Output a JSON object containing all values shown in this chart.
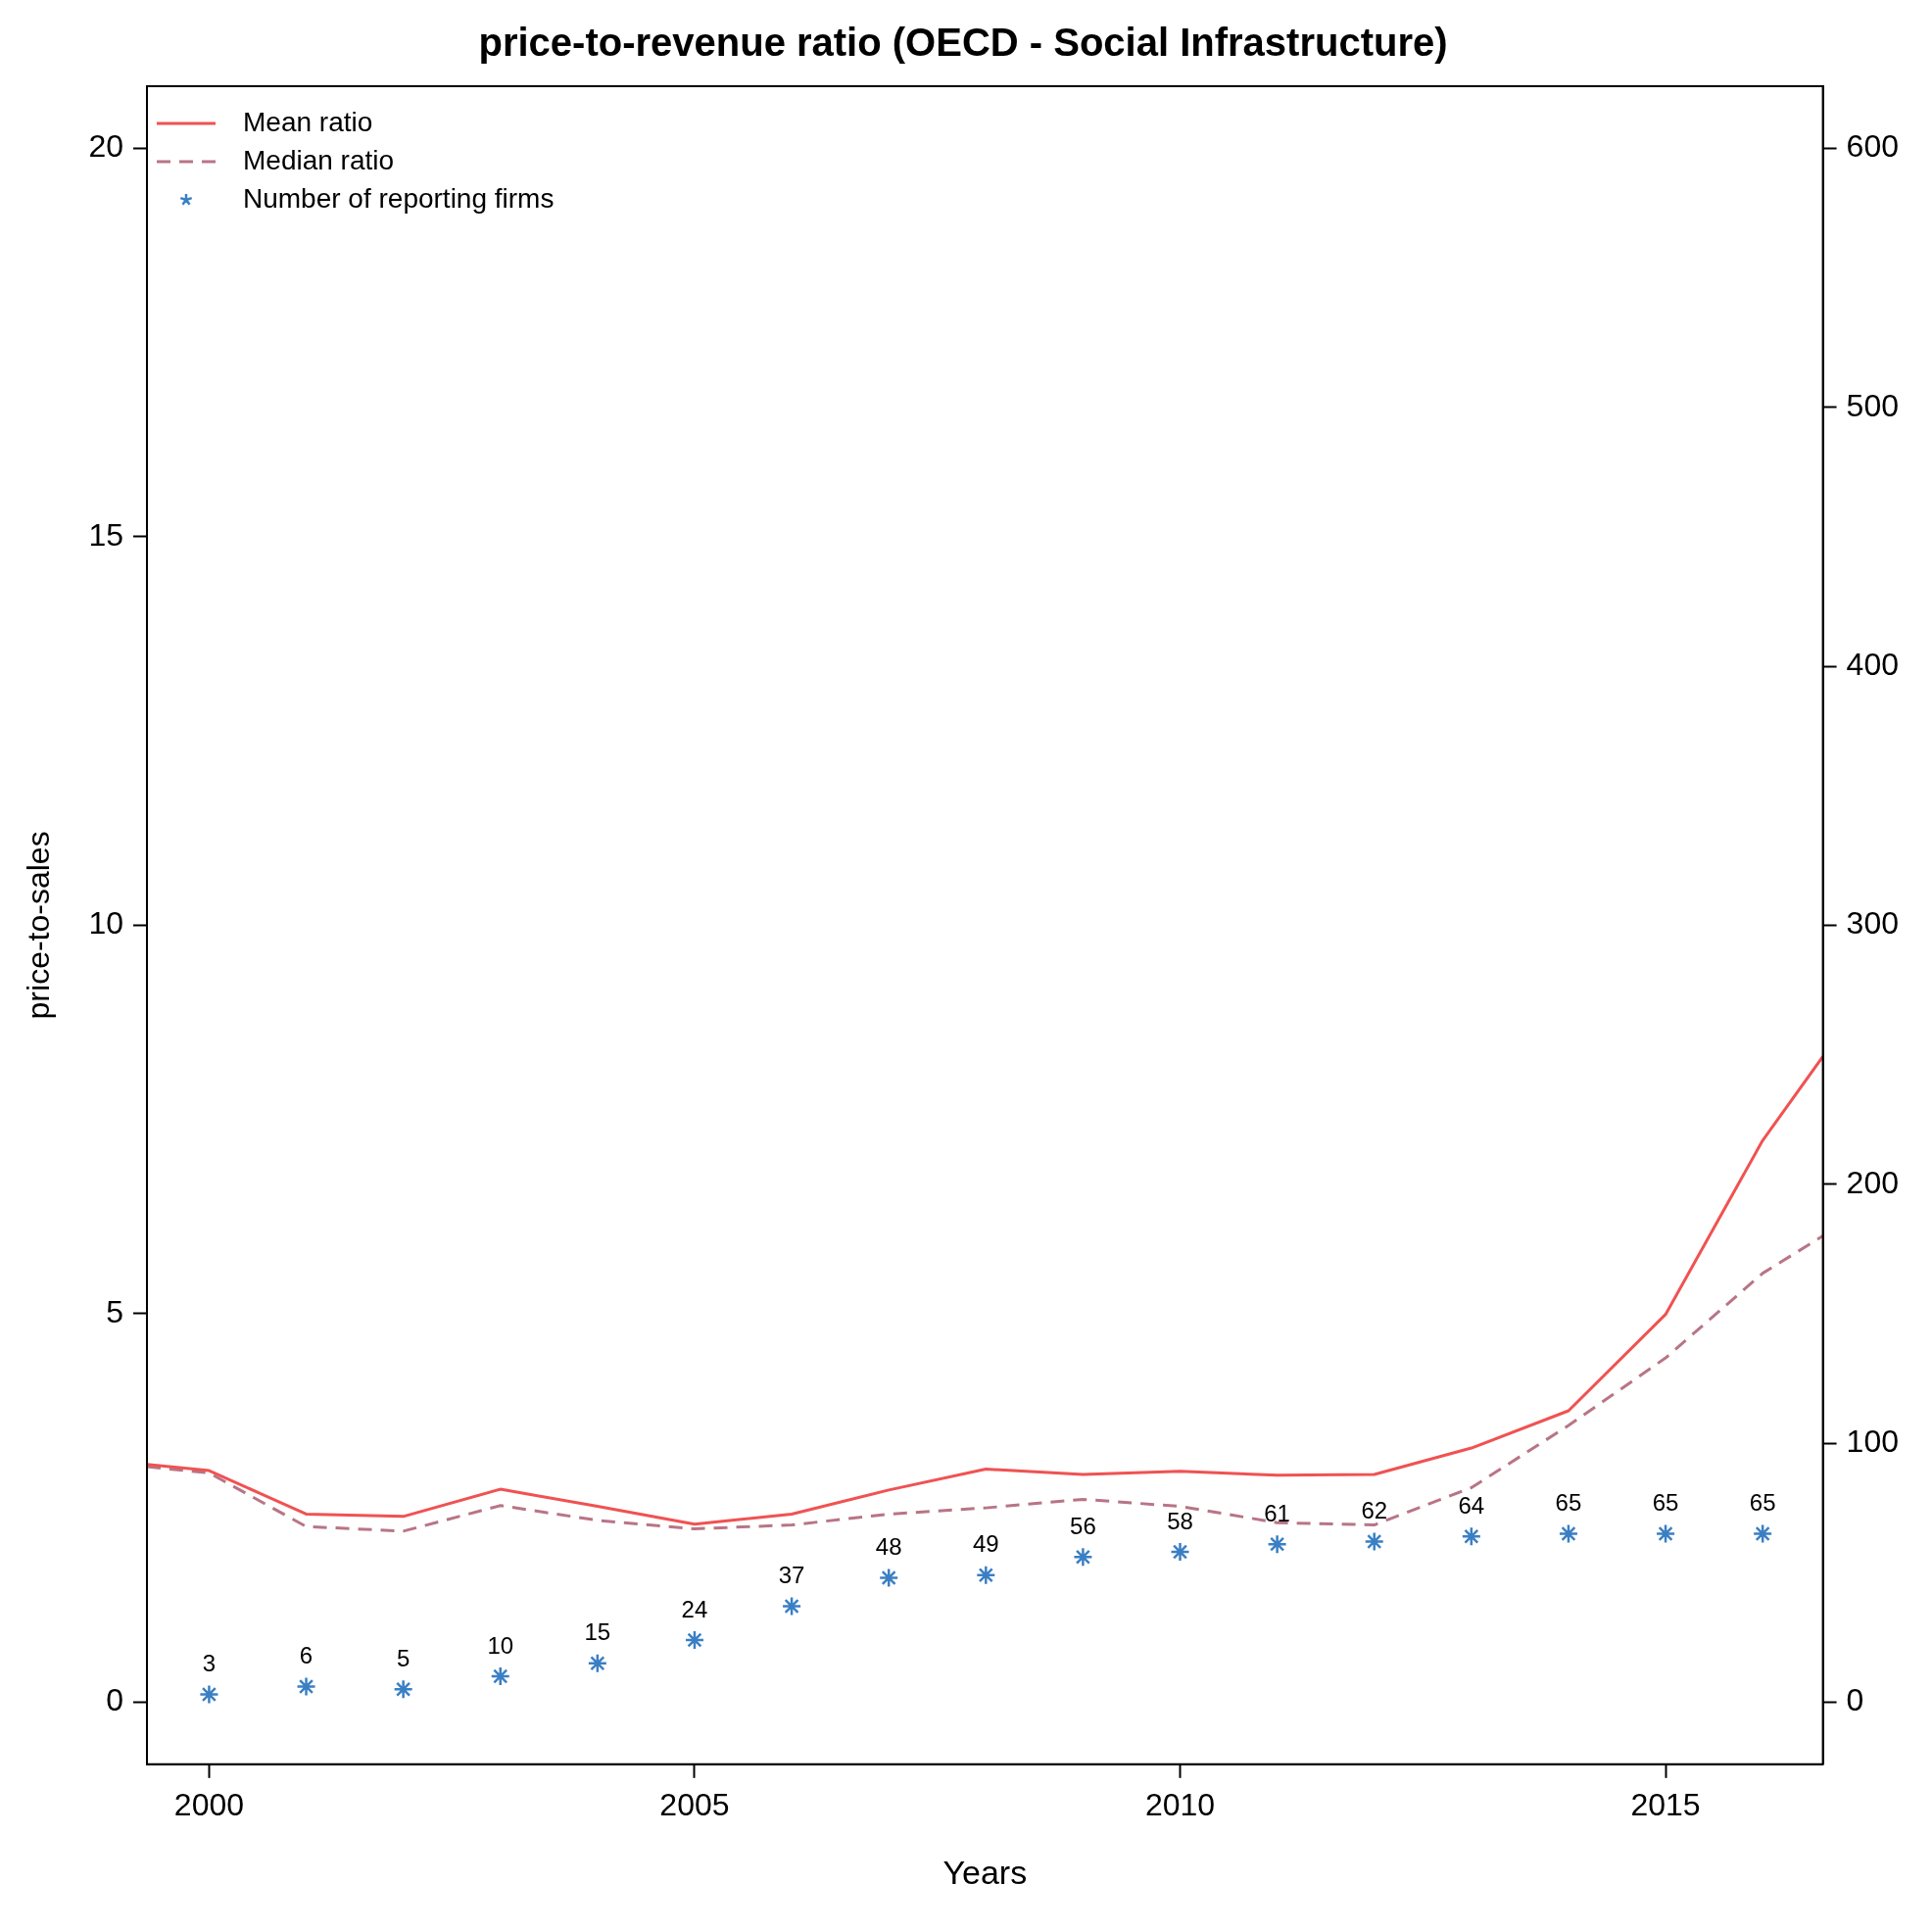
{
  "chart_data": {
    "type": "line",
    "title": "price-to-revenue ratio (OECD - Social Infrastructure)",
    "xlabel": "Years",
    "ylabel": "price-to-sales",
    "x": [
      2000,
      2001,
      2002,
      2003,
      2004,
      2005,
      2006,
      2007,
      2008,
      2009,
      2010,
      2011,
      2012,
      2013,
      2014,
      2015,
      2016
    ],
    "xlim": [
      1999.36,
      2016.62
    ],
    "xticks": [
      2000,
      2005,
      2010,
      2015
    ],
    "ylim": [
      -0.8,
      20.8
    ],
    "yticks": [
      0,
      5,
      10,
      15,
      20
    ],
    "y2lim": [
      -24,
      624
    ],
    "y2ticks": [
      0,
      100,
      200,
      300,
      400,
      500,
      600
    ],
    "grid": false,
    "legend": "top left",
    "series": [
      {
        "name": "Mean ratio",
        "color": "#f05252",
        "line_style": "solid",
        "marker": "none",
        "x": [
          1999.36,
          2000,
          2001,
          2002,
          2003,
          2004,
          2005,
          2006,
          2007,
          2008,
          2009,
          2010,
          2011,
          2012,
          2013,
          2014,
          2015,
          2016,
          2016.62
        ],
        "values": [
          3.06,
          2.98,
          2.42,
          2.39,
          2.74,
          2.52,
          2.29,
          2.42,
          2.73,
          3.0,
          2.93,
          2.97,
          2.92,
          2.93,
          3.27,
          3.75,
          4.99,
          7.23,
          8.31
        ]
      },
      {
        "name": "Median ratio",
        "color": "#b87585",
        "line_style": "dashed",
        "marker": "none",
        "x": [
          1999.36,
          2000,
          2001,
          2002,
          2003,
          2004,
          2005,
          2006,
          2007,
          2008,
          2009,
          2010,
          2011,
          2012,
          2013,
          2014,
          2015,
          2016,
          2016.62
        ],
        "values": [
          3.03,
          2.95,
          2.26,
          2.2,
          2.53,
          2.34,
          2.23,
          2.28,
          2.42,
          2.5,
          2.61,
          2.52,
          2.31,
          2.28,
          2.76,
          3.56,
          4.43,
          5.52,
          6.0
        ]
      },
      {
        "name": "Number of reporting firms",
        "type": "scatter",
        "axis": "y2",
        "color": "#3a7fc4",
        "marker": "cross",
        "values": [
          3,
          6,
          5,
          10,
          15,
          24,
          37,
          48,
          49,
          56,
          58,
          61,
          62,
          64,
          65,
          65,
          65
        ],
        "value_labels": [
          "3",
          "6",
          "5",
          "10",
          "15",
          "24",
          "37",
          "48",
          "49",
          "56",
          "58",
          "61",
          "62",
          "64",
          "65",
          "65",
          "65"
        ]
      }
    ]
  }
}
